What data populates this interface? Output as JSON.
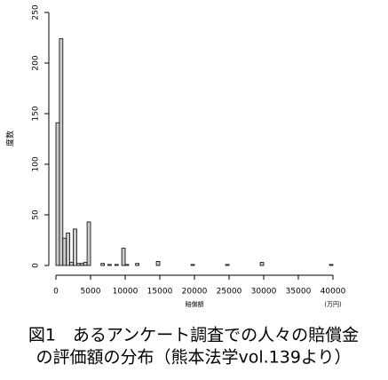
{
  "chart_data": {
    "type": "histogram",
    "y_label": "度数",
    "x_label": "賠償額",
    "unit_label": "(万円)",
    "caption": [
      "図1　あるアンケート調査での人々の賠償金",
      "の評価額の分布（熊本法学vol.139より）"
    ],
    "bins": [
      0,
      500,
      1000,
      1500,
      2000,
      2500,
      3000,
      3500,
      4000,
      4500,
      5000,
      5500,
      6000,
      6500,
      7000,
      7500,
      8000,
      8500,
      9000,
      9500,
      10000,
      10500,
      11000,
      11500,
      12000,
      12500,
      13000,
      13500,
      14000,
      14500,
      15000,
      15500,
      16000,
      16500,
      17000,
      17500,
      18000,
      18500,
      19000,
      19500,
      20000,
      20500,
      21000,
      21500,
      22000,
      22500,
      23000,
      23500,
      24000,
      24500,
      25000,
      25500,
      26000,
      26500,
      27000,
      27500,
      28000,
      28500,
      29000,
      29500,
      30000,
      30500,
      31000,
      31500,
      32000,
      32500,
      33000,
      33500,
      34000,
      34500,
      35000,
      35500,
      36000,
      36500,
      37000,
      37500,
      38000,
      38500,
      39000,
      39500,
      40000
    ],
    "counts": [
      141,
      224,
      27,
      32,
      3,
      36,
      2,
      2,
      3,
      43,
      0,
      0,
      0,
      2,
      0,
      1,
      0,
      1,
      0,
      17,
      1,
      0,
      0,
      2,
      0,
      0,
      0,
      0,
      0,
      4,
      0,
      0,
      0,
      0,
      0,
      0,
      0,
      0,
      0,
      1,
      0,
      0,
      0,
      0,
      0,
      0,
      0,
      0,
      0,
      1,
      0,
      0,
      0,
      0,
      0,
      0,
      0,
      0,
      0,
      3,
      0,
      0,
      0,
      0,
      0,
      0,
      0,
      0,
      0,
      0,
      0,
      0,
      0,
      0,
      0,
      0,
      0,
      0,
      0,
      1
    ],
    "color": "#cccccc",
    "xlim": [
      0,
      40000
    ],
    "xticks": [
      0,
      5000,
      10000,
      15000,
      20000,
      25000,
      30000,
      35000,
      40000
    ],
    "ylim": [
      0,
      250
    ],
    "yticks": [
      0,
      50,
      100,
      150,
      200,
      250
    ]
  }
}
